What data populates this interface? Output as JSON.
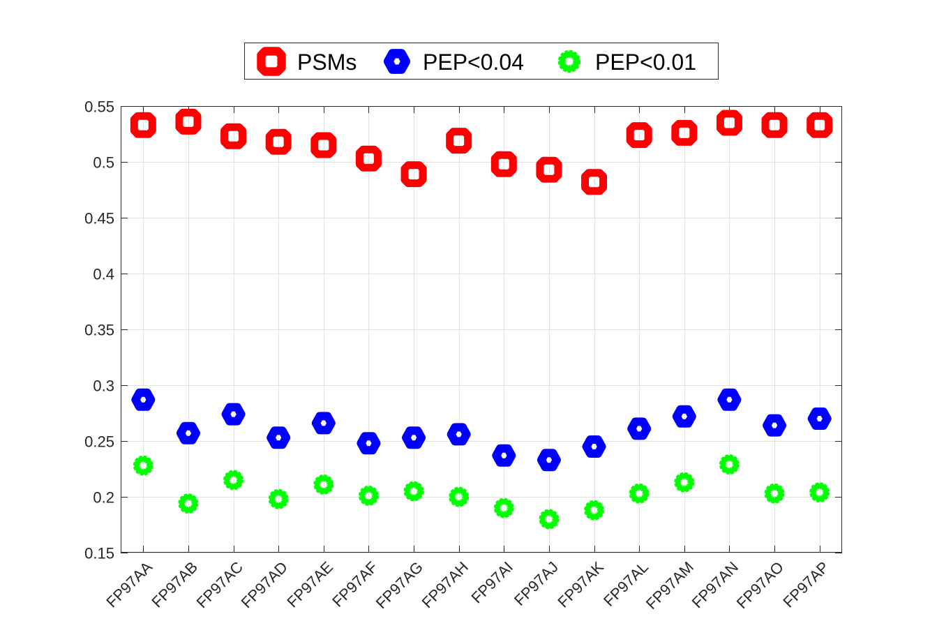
{
  "chart_data": {
    "type": "scatter",
    "title": "",
    "xlabel": "",
    "ylabel": "",
    "categories": [
      "FP97AA",
      "FP97AB",
      "FP97AC",
      "FP97AD",
      "FP97AE",
      "FP97AF",
      "FP97AG",
      "FP97AH",
      "FP97AI",
      "FP97AJ",
      "FP97AK",
      "FP97AL",
      "FP97AM",
      "FP97AN",
      "FP97AO",
      "FP97AP"
    ],
    "ylim": [
      0.15,
      0.55
    ],
    "yticks": [
      0.15,
      0.2,
      0.25,
      0.3,
      0.35,
      0.4,
      0.45,
      0.5,
      0.55
    ],
    "ytick_labels": [
      "0.15",
      "0.2",
      "0.25",
      "0.3",
      "0.35",
      "0.4",
      "0.45",
      "0.5",
      "0.55"
    ],
    "grid": true,
    "legend_position": "top-center, outside plot, horizontal",
    "series": [
      {
        "name": "PSMs",
        "marker": "square",
        "color": "#ff0000",
        "values": [
          0.533,
          0.536,
          0.523,
          0.518,
          0.515,
          0.503,
          0.489,
          0.519,
          0.498,
          0.493,
          0.482,
          0.524,
          0.526,
          0.535,
          0.533,
          0.533
        ]
      },
      {
        "name": "PEP<0.04",
        "marker": "diamond",
        "color": "#0000ff",
        "values": [
          0.287,
          0.257,
          0.274,
          0.253,
          0.266,
          0.248,
          0.253,
          0.256,
          0.237,
          0.233,
          0.245,
          0.261,
          0.272,
          0.287,
          0.264,
          0.27
        ]
      },
      {
        "name": "PEP<0.01",
        "marker": "circle",
        "color": "#00ff00",
        "values": [
          0.228,
          0.194,
          0.215,
          0.198,
          0.211,
          0.201,
          0.205,
          0.2,
          0.19,
          0.18,
          0.188,
          0.203,
          0.213,
          0.229,
          0.203,
          0.204
        ]
      }
    ]
  }
}
